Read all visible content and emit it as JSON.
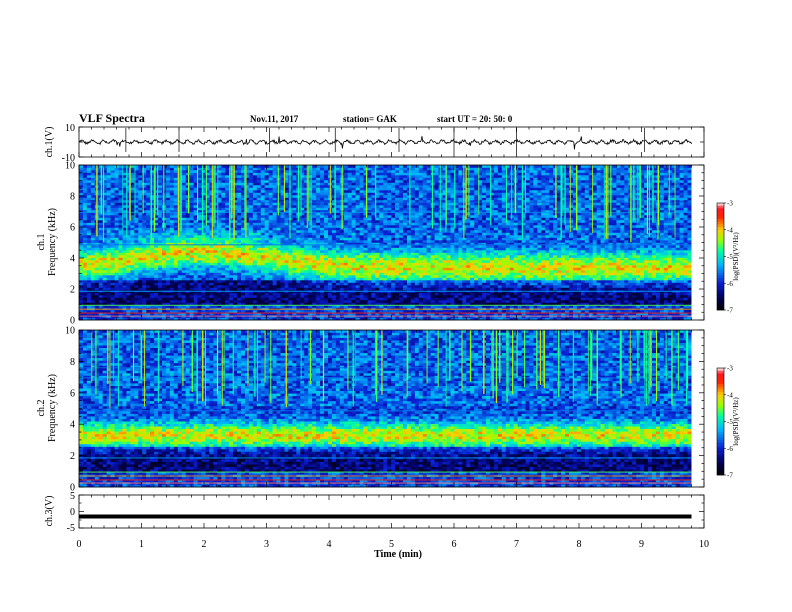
{
  "header": {
    "title": "VLF Spectra",
    "date": "Nov.11, 2017",
    "station": "station= GAK",
    "start": "start  UT =   20: 50: 0"
  },
  "chart_data": [
    {
      "type": "line",
      "panel": "ch1-waveform",
      "ylabel": "ch.1(V)",
      "ylim": [
        -10,
        10
      ],
      "yticks": [
        "10",
        "-10"
      ],
      "xlim": [
        0,
        10
      ]
    },
    {
      "type": "heatmap",
      "panel": "ch1-spectrogram",
      "ylabel": "ch.1\nFrequency  (kHz)",
      "ylim": [
        0,
        10
      ],
      "yticks": [
        "0",
        "2",
        "4",
        "6",
        "8",
        "10"
      ],
      "xlim": [
        0,
        10
      ],
      "data_end_min": 9.8,
      "colorbar": {
        "label": "log(PSD)(V²/Hz)",
        "range": [
          -7,
          -3
        ],
        "ticks": [
          "-3",
          "-4",
          "-5",
          "-6",
          "-7"
        ]
      }
    },
    {
      "type": "heatmap",
      "panel": "ch2-spectrogram",
      "ylabel": "ch.2\nFrequency  (kHz)",
      "ylim": [
        0,
        10
      ],
      "yticks": [
        "0",
        "2",
        "4",
        "6",
        "8",
        "10"
      ],
      "xlim": [
        0,
        10
      ],
      "data_end_min": 9.8,
      "colorbar": {
        "label": "log(PSD)(V²/Hz)",
        "range": [
          -7,
          -3
        ],
        "ticks": [
          "-3",
          "-4",
          "-5",
          "-6",
          "-7"
        ]
      }
    },
    {
      "type": "line",
      "panel": "ch3-waveform",
      "ylabel": "ch.3(V)",
      "ylim": [
        -5,
        5
      ],
      "yticks": [
        "5",
        "0",
        "-5"
      ],
      "constant_value": -1.5,
      "xlim": [
        0,
        10
      ]
    }
  ],
  "xaxis": {
    "label": "Time  (min)",
    "ticks": [
      "0",
      "1",
      "2",
      "3",
      "4",
      "5",
      "6",
      "7",
      "8",
      "9",
      "10"
    ]
  },
  "colors": {
    "trace": "#000000",
    "colormap": [
      "#000000",
      "#00005a",
      "#0a1ed2",
      "#00b4ff",
      "#00ffa0",
      "#96ff00",
      "#ffcc00",
      "#ff2000",
      "#ff1a22",
      "#ffffff"
    ]
  }
}
